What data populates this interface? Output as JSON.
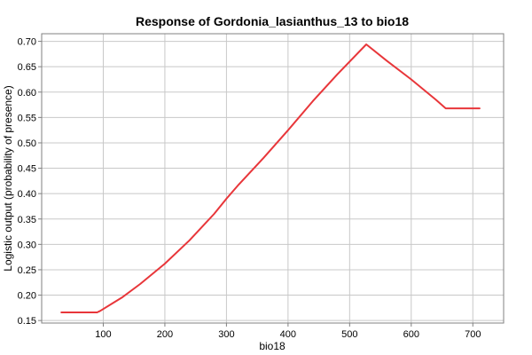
{
  "chart_data": {
    "type": "line",
    "title": "Response of Gordonia_lasianthus_13 to bio18",
    "xlabel": "bio18",
    "ylabel": "Logistic output (probability of presence)",
    "xlim": [
      0,
      750
    ],
    "ylim": [
      0.145,
      0.715
    ],
    "xticks": [
      100,
      200,
      300,
      400,
      500,
      600,
      700
    ],
    "yticks": [
      0.15,
      0.2,
      0.25,
      0.3,
      0.35,
      0.4,
      0.45,
      0.5,
      0.55,
      0.6,
      0.65,
      0.7
    ],
    "xtick_labels": [
      "100",
      "200",
      "300",
      "400",
      "500",
      "600",
      "700"
    ],
    "ytick_labels": [
      "0.15",
      "0.20",
      "0.25",
      "0.30",
      "0.35",
      "0.40",
      "0.45",
      "0.50",
      "0.55",
      "0.60",
      "0.65",
      "0.70"
    ],
    "grid": true,
    "color": "#e8363a",
    "series": [
      {
        "x": [
          32,
          90,
          95,
          130,
          160,
          200,
          240,
          280,
          300,
          320,
          360,
          400,
          440,
          480,
          527,
          560,
          600,
          640,
          656,
          711
        ],
        "y": [
          0.166,
          0.166,
          0.169,
          0.195,
          0.222,
          0.262,
          0.308,
          0.36,
          0.39,
          0.418,
          0.47,
          0.525,
          0.582,
          0.635,
          0.694,
          0.662,
          0.625,
          0.585,
          0.568,
          0.568
        ]
      }
    ]
  }
}
